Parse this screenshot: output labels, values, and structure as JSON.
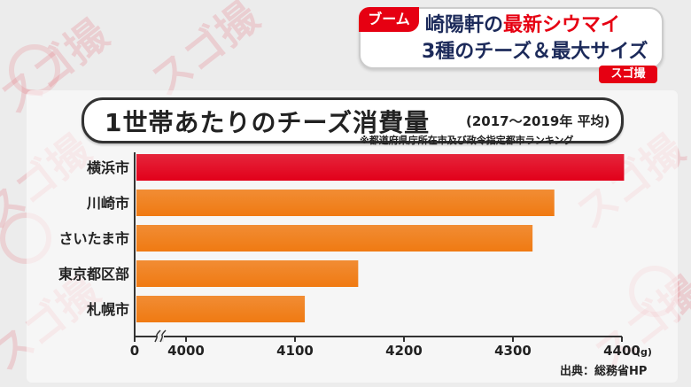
{
  "banner": {
    "tag": "ブーム",
    "line1_prefix": "崎陽軒の",
    "line1_highlight": "最新シウマイ",
    "line2": "3種のチーズ＆最大サイズ",
    "brand": "スゴ撮"
  },
  "watermark": {
    "text": "スゴ撮"
  },
  "colors": {
    "accent": "#e60012",
    "bar_highlight": "#e2001a",
    "bar": "#f07a12"
  },
  "chart_data": {
    "type": "bar",
    "orientation": "horizontal",
    "title": "1世帯あたりのチーズ消費量",
    "subtitle": "(2017～2019年 平均)",
    "note": "※都道府県庁所在市及び政令指定都市ランキング",
    "categories": [
      "横浜市",
      "川崎市",
      "さいたま市",
      "東京都区部",
      "札幌市"
    ],
    "values": [
      4402,
      4338,
      4318,
      4158,
      4109
    ],
    "highlight_index": 0,
    "xlim": [
      4000,
      4400
    ],
    "axis_break": true,
    "x_tick_labels": [
      "0",
      "4000",
      "4100",
      "4200",
      "4300",
      "4400"
    ],
    "x_unit": "(g)",
    "grid": false,
    "source": "出典：総務省HP"
  }
}
